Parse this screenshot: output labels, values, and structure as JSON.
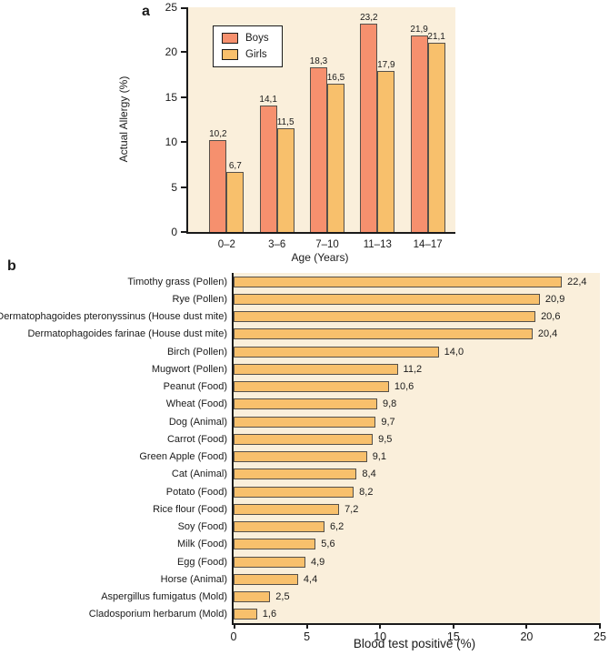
{
  "chart_data": [
    {
      "type": "bar",
      "panel_label": "a",
      "title": "",
      "categories": [
        "0–2",
        "3–6",
        "7–10",
        "11–13",
        "14–17"
      ],
      "series": [
        {
          "name": "Boys",
          "color": "#f6906e",
          "values": [
            10.2,
            14.1,
            18.3,
            23.2,
            21.9
          ],
          "labels": [
            "10,2",
            "14,1",
            "18,3",
            "23,2",
            "21,9"
          ]
        },
        {
          "name": "Girls",
          "color": "#f8c06c",
          "values": [
            6.7,
            11.5,
            16.5,
            17.9,
            21.1
          ],
          "labels": [
            "6,7",
            "11,5",
            "16,5",
            "17,9",
            "21,1"
          ]
        }
      ],
      "xlabel": "Age (Years)",
      "ylabel": "Actual Allergy (%)",
      "ylim": [
        0,
        25
      ],
      "yticks": [
        0,
        5,
        10,
        15,
        20,
        25
      ],
      "grid": false,
      "legend_position": "upper-left-inside",
      "plot_background": "#faefdb",
      "bar_border_color": "#55504a"
    },
    {
      "type": "bar",
      "orientation": "horizontal",
      "panel_label": "b",
      "title": "",
      "categories": [
        "Timothy grass (Pollen)",
        "Rye (Pollen)",
        "Dermatophagoides pteronyssinus (House dust mite)",
        "Dermatophagoides farinae (House dust mite)",
        "Birch (Pollen)",
        "Mugwort (Pollen)",
        "Peanut (Food)",
        "Wheat (Food)",
        "Dog (Animal)",
        "Carrot (Food)",
        "Green Apple (Food)",
        "Cat (Animal)",
        "Potato (Food)",
        "Rice flour (Food)",
        "Soy (Food)",
        "Milk (Food)",
        "Egg (Food)",
        "Horse (Animal)",
        "Aspergillus fumigatus (Mold)",
        "Cladosporium herbarum (Mold)"
      ],
      "values": [
        22.4,
        20.9,
        20.6,
        20.4,
        14.0,
        11.2,
        10.6,
        9.8,
        9.7,
        9.5,
        9.1,
        8.4,
        8.2,
        7.2,
        6.2,
        5.6,
        4.9,
        4.4,
        2.5,
        1.6
      ],
      "labels": [
        "22,4",
        "20,9",
        "20,6",
        "20,4",
        "14,0",
        "11,2",
        "10,6",
        "9,8",
        "9,7",
        "9,5",
        "9,1",
        "8,4",
        "8,2",
        "7,2",
        "6,2",
        "5,6",
        "4,9",
        "4,4",
        "2,5",
        "1,6"
      ],
      "xlabel": "Blood test positive (%)",
      "xlim": [
        0,
        25
      ],
      "xticks": [
        0,
        5,
        10,
        15,
        20,
        25
      ],
      "grid": false,
      "bar_color": "#f8c06c",
      "plot_background": "#faefdb",
      "bar_border_color": "#55504a"
    }
  ]
}
